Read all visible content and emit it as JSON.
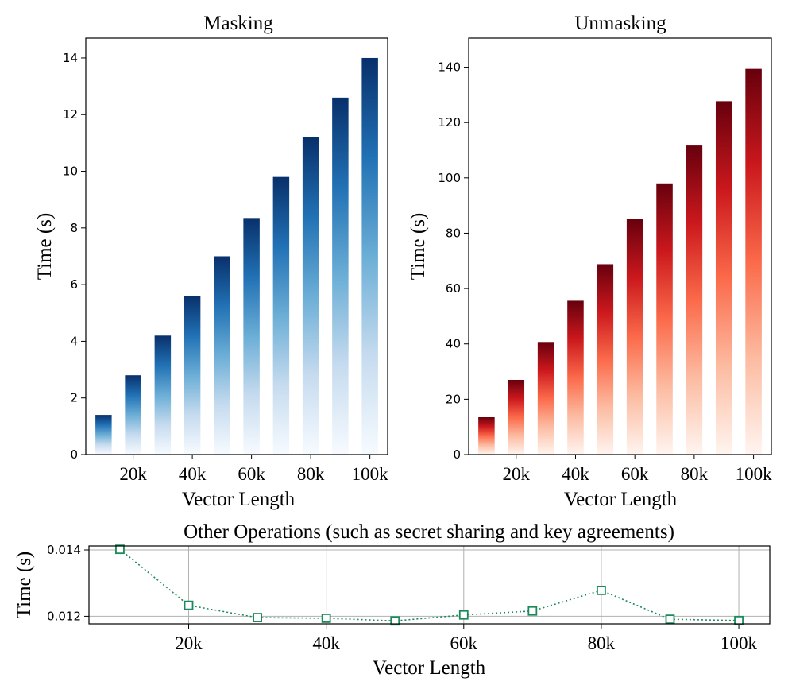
{
  "chart_data": [
    {
      "type": "bar",
      "title": "Masking",
      "xlabel": "Vector Length",
      "ylabel": "Time (s)",
      "x": [
        10000,
        20000,
        30000,
        40000,
        50000,
        60000,
        70000,
        80000,
        90000,
        100000
      ],
      "values": [
        1.4,
        2.8,
        4.2,
        5.6,
        7.0,
        8.35,
        9.8,
        11.2,
        12.6,
        14.0
      ],
      "x_ticks": [
        20000,
        40000,
        60000,
        80000,
        100000
      ],
      "x_tick_labels": [
        "20k",
        "40k",
        "60k",
        "80k",
        "100k"
      ],
      "y_ticks": [
        0,
        2,
        4,
        6,
        8,
        10,
        12,
        14
      ],
      "y_tick_labels": [
        "0",
        "2",
        "4",
        "6",
        "8",
        "10",
        "12",
        "14"
      ],
      "xlim": [
        4000,
        106000
      ],
      "ylim": [
        0,
        14.7
      ],
      "colormap": "Blues",
      "gradient_colors": [
        "#08306b",
        "#2171b5",
        "#6baed6",
        "#c6dbef",
        "#f7fbff"
      ],
      "grid": false
    },
    {
      "type": "bar",
      "title": "Unmasking",
      "xlabel": "Vector Length",
      "ylabel": "Time (s)",
      "x": [
        10000,
        20000,
        30000,
        40000,
        50000,
        60000,
        70000,
        80000,
        90000,
        100000
      ],
      "values": [
        13.5,
        27,
        40.7,
        55.6,
        68.8,
        85.2,
        98,
        111.7,
        127.7,
        139.4
      ],
      "x_ticks": [
        20000,
        40000,
        60000,
        80000,
        100000
      ],
      "x_tick_labels": [
        "20k",
        "40k",
        "60k",
        "80k",
        "100k"
      ],
      "y_ticks": [
        0,
        20,
        40,
        60,
        80,
        100,
        120,
        140
      ],
      "y_tick_labels": [
        "0",
        "20",
        "40",
        "60",
        "80",
        "100",
        "120",
        "140"
      ],
      "xlim": [
        4000,
        106000
      ],
      "ylim": [
        0,
        150.5
      ],
      "colormap": "Reds",
      "gradient_colors": [
        "#67000d",
        "#cb181d",
        "#fb6a4a",
        "#fcbba1",
        "#fff5f0"
      ],
      "grid": false
    },
    {
      "type": "line",
      "title": "Other Operations (such as secret sharing and key agreements)",
      "xlabel": "Vector Length",
      "ylabel": "Time (s)",
      "x": [
        10000,
        20000,
        30000,
        40000,
        50000,
        60000,
        70000,
        80000,
        90000,
        100000
      ],
      "y": [
        0.01402,
        0.01233,
        0.01196,
        0.01194,
        0.01186,
        0.01204,
        0.01216,
        0.01278,
        0.01191,
        0.01187
      ],
      "x_ticks": [
        20000,
        40000,
        60000,
        80000,
        100000
      ],
      "x_tick_labels": [
        "20k",
        "40k",
        "60k",
        "80k",
        "100k"
      ],
      "y_ticks": [
        0.012,
        0.014
      ],
      "y_tick_labels": [
        "0.012",
        "0.014"
      ],
      "xlim": [
        5500,
        104500
      ],
      "ylim": [
        0.01177,
        0.01412
      ],
      "color": "#1b8a5a",
      "linestyle": "dotted",
      "marker": "hollow-square",
      "grid": true
    }
  ]
}
